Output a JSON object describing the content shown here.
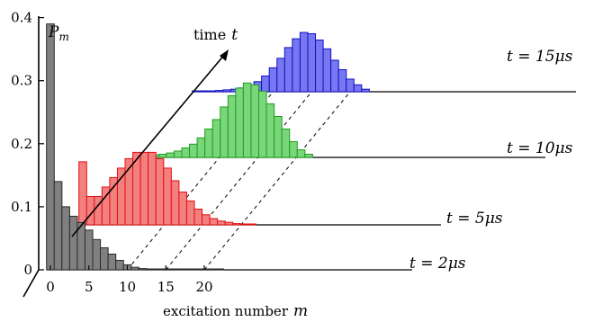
{
  "chart_data": {
    "type": "bar",
    "title": "",
    "ylabel": "P",
    "ylabel_subscript": "m",
    "xlabel": "excitation number",
    "xlabel_symbol": "m",
    "depth_axis_label": "time",
    "depth_axis_symbol": "t",
    "ylim": [
      0,
      0.45
    ],
    "yticks": [
      0,
      0.1,
      0.2,
      0.3,
      0.4
    ],
    "xticks": [
      0,
      5,
      10,
      15,
      20
    ],
    "grid": false,
    "series": [
      {
        "name": "t = 2μs",
        "color": "#808080",
        "stroke": "#2a2a2a",
        "x": [
          0,
          1,
          2,
          3,
          4,
          5,
          6,
          7,
          8,
          9,
          10,
          11,
          12,
          13,
          14,
          15,
          16,
          17,
          18,
          19,
          20,
          21,
          22
        ],
        "values": [
          0.39,
          0.14,
          0.1,
          0.085,
          0.075,
          0.063,
          0.048,
          0.035,
          0.025,
          0.015,
          0.008,
          0.004,
          0.002,
          0.001,
          0.001,
          0.001,
          0.001,
          0.001,
          0.001,
          0.001,
          0.001,
          0.001,
          0.001
        ]
      },
      {
        "name": "t = 5μs",
        "color": "#f47f7f",
        "stroke": "#e01010",
        "x": [
          0,
          1,
          2,
          3,
          4,
          5,
          6,
          7,
          8,
          9,
          10,
          11,
          12,
          13,
          14,
          15,
          16,
          17,
          18,
          19,
          20,
          21,
          22
        ],
        "values": [
          0.1,
          0.045,
          0.045,
          0.06,
          0.075,
          0.09,
          0.105,
          0.115,
          0.115,
          0.115,
          0.105,
          0.09,
          0.07,
          0.052,
          0.038,
          0.025,
          0.016,
          0.01,
          0.006,
          0.004,
          0.002,
          0.001,
          0.001
        ]
      },
      {
        "name": "t = 10μs",
        "color": "#7ad67a",
        "stroke": "#1e9e1e",
        "x": [
          0,
          1,
          2,
          3,
          4,
          5,
          6,
          7,
          8,
          9,
          10,
          11,
          12,
          13,
          14,
          15,
          16,
          17,
          18,
          19,
          20,
          21,
          22
        ],
        "values": [
          0.005,
          0.003,
          0.004,
          0.005,
          0.007,
          0.01,
          0.015,
          0.021,
          0.031,
          0.045,
          0.06,
          0.08,
          0.098,
          0.11,
          0.118,
          0.115,
          0.105,
          0.085,
          0.065,
          0.045,
          0.025,
          0.012,
          0.005
        ]
      },
      {
        "name": "t = 15μs",
        "color": "#7777f0",
        "stroke": "#1010c8",
        "x": [
          0,
          1,
          2,
          3,
          4,
          5,
          6,
          7,
          8,
          9,
          10,
          11,
          12,
          13,
          14,
          15,
          16,
          17,
          18,
          19,
          20,
          21,
          22
        ],
        "values": [
          0.001,
          0.001,
          0.001,
          0.002,
          0.003,
          0.004,
          0.006,
          0.01,
          0.016,
          0.025,
          0.038,
          0.053,
          0.07,
          0.084,
          0.094,
          0.092,
          0.082,
          0.068,
          0.05,
          0.035,
          0.02,
          0.011,
          0.004
        ]
      }
    ]
  }
}
